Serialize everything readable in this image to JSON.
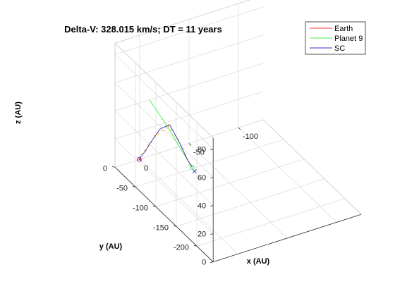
{
  "chart_data": {
    "type": "line",
    "projection": "3d",
    "title": "Delta-V: 328.015 km/s; DT = 11 years",
    "xlabel": "x (AU)",
    "ylabel": "y (AU)",
    "zlabel": "z (AU)",
    "x_ticks": [
      0,
      -50,
      -100
    ],
    "y_ticks": [
      0,
      -50,
      -100,
      -150,
      -200
    ],
    "z_ticks": [
      0,
      20,
      40,
      60,
      80
    ],
    "xlim": [
      -125,
      25
    ],
    "ylim": [
      -240,
      0
    ],
    "zlim": [
      0,
      88
    ],
    "grid": true,
    "legend_position": "top-right",
    "series": [
      {
        "name": "Earth",
        "color": "#ff3333",
        "points": [
          [
            0.6,
            0.6,
            0
          ],
          [
            0.7,
            -0.5,
            0
          ],
          [
            -0.5,
            -0.8,
            0
          ],
          [
            -0.9,
            0.3,
            0
          ],
          [
            0.1,
            1.0,
            0
          ],
          [
            0.6,
            0.6,
            0
          ]
        ]
      },
      {
        "name": "Planet 9",
        "color": "#44ee44",
        "points": [
          [
            -12,
            5,
            38
          ],
          [
            -15,
            -10,
            32
          ],
          [
            -18,
            -25,
            26
          ],
          [
            -20,
            -40,
            20
          ],
          [
            -22,
            -55,
            14
          ],
          [
            -23.5,
            -71.5,
            9
          ]
        ]
      },
      {
        "name": "SC",
        "color": "#3333cc",
        "points": [
          [
            0.5,
            0.5,
            0
          ],
          [
            -3,
            -5,
            6
          ],
          [
            -7,
            -14,
            16
          ],
          [
            -11,
            -24,
            26
          ],
          [
            -15.5,
            -36,
            31
          ],
          [
            -19.5,
            -52,
            21
          ],
          [
            -22,
            -62,
            13
          ],
          [
            -23.5,
            -71.5,
            9
          ]
        ]
      }
    ],
    "orbit_samples": {
      "color": "#f5a623",
      "points": [
        [
          -1,
          -2,
          4
        ],
        [
          -3,
          -6,
          7
        ],
        [
          -5,
          -9,
          11
        ],
        [
          -6.5,
          -12,
          14
        ],
        [
          -8.5,
          -17,
          19
        ],
        [
          -10,
          -21,
          22
        ],
        [
          -12,
          -26,
          25
        ],
        [
          -14,
          -31,
          28
        ],
        [
          -15,
          -34,
          30
        ],
        [
          -16.5,
          -39,
          28
        ],
        [
          -18,
          -45,
          25
        ],
        [
          -19,
          -49,
          23
        ],
        [
          -20.5,
          -55,
          18
        ],
        [
          -21.5,
          -59,
          15
        ],
        [
          -22.5,
          -64,
          12
        ],
        [
          -23,
          -68,
          10
        ]
      ]
    },
    "markers": [
      {
        "name": "start",
        "symbol": "circle",
        "color": "#8b1a8b",
        "point": [
          0.3,
          0.3,
          0
        ]
      },
      {
        "name": "planet9-arrival",
        "symbol": "circle",
        "color": "#44ee44",
        "point": [
          -23.5,
          -71.5,
          9
        ]
      },
      {
        "name": "sc-arrival",
        "symbol": "x",
        "color": "#3333cc",
        "point": [
          -23.5,
          -71.5,
          9
        ]
      }
    ]
  }
}
